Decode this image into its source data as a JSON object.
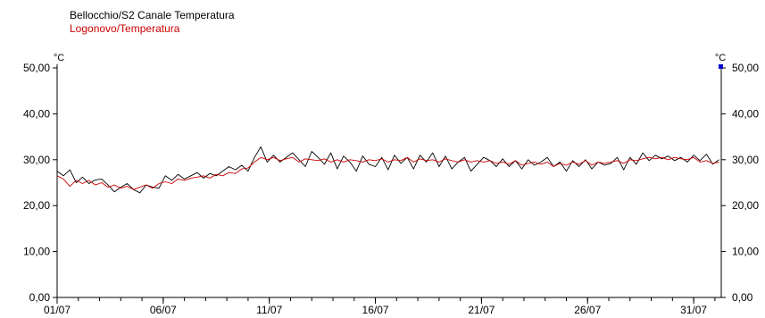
{
  "chart_data": {
    "type": "line",
    "title": "",
    "xlabel": "",
    "ylabel_left": "°C",
    "ylabel_right": "°C",
    "ylim": [
      0,
      50
    ],
    "y_ticks": [
      "0,00",
      "10,00",
      "20,00",
      "30,00",
      "40,00",
      "50,00"
    ],
    "x_ticks": [
      "01/07",
      "06/07",
      "11/07",
      "16/07",
      "21/07",
      "26/07",
      "31/07"
    ],
    "x_tick_days": [
      1,
      6,
      11,
      16,
      21,
      26,
      31
    ],
    "xlim_days": [
      1,
      32.3
    ],
    "grid": false,
    "legend_placement": "top-left",
    "series": [
      {
        "name": "Bellocchio/S2 Canale Temperatura",
        "color": "#000000",
        "x": [
          1.0,
          1.3,
          1.6,
          1.9,
          2.2,
          2.5,
          2.8,
          3.1,
          3.4,
          3.7,
          4.0,
          4.3,
          4.6,
          4.9,
          5.2,
          5.5,
          5.8,
          6.1,
          6.4,
          6.7,
          7.0,
          7.3,
          7.6,
          7.9,
          8.2,
          8.5,
          8.8,
          9.1,
          9.4,
          9.7,
          10.0,
          10.3,
          10.6,
          10.9,
          11.2,
          11.5,
          11.8,
          12.1,
          12.4,
          12.7,
          13.0,
          13.3,
          13.6,
          13.9,
          14.2,
          14.5,
          14.8,
          15.1,
          15.4,
          15.7,
          16.0,
          16.3,
          16.6,
          16.9,
          17.2,
          17.5,
          17.8,
          18.1,
          18.4,
          18.7,
          19.0,
          19.3,
          19.6,
          19.9,
          20.2,
          20.5,
          20.8,
          21.1,
          21.4,
          21.7,
          22.0,
          22.3,
          22.6,
          22.9,
          23.2,
          23.5,
          23.8,
          24.1,
          24.4,
          24.7,
          25.0,
          25.3,
          25.6,
          25.9,
          26.2,
          26.5,
          26.8,
          27.1,
          27.4,
          27.7,
          28.0,
          28.3,
          28.6,
          28.9,
          29.2,
          29.5,
          29.8,
          30.1,
          30.4,
          30.7,
          31.0,
          31.3,
          31.6,
          31.9,
          32.2
        ],
        "values": [
          27.5,
          26.5,
          27.8,
          25.0,
          26.2,
          24.8,
          25.6,
          25.8,
          24.5,
          23.0,
          24.0,
          24.8,
          23.5,
          22.8,
          24.5,
          24.0,
          23.8,
          26.5,
          25.5,
          26.8,
          25.8,
          26.5,
          27.2,
          26.0,
          27.0,
          26.5,
          27.5,
          28.5,
          27.8,
          28.8,
          27.5,
          30.5,
          32.8,
          29.5,
          31.0,
          29.5,
          30.5,
          31.5,
          30.0,
          28.5,
          31.8,
          30.5,
          29.0,
          31.5,
          28.0,
          30.8,
          29.5,
          27.5,
          30.8,
          29.0,
          28.5,
          30.5,
          27.8,
          31.0,
          29.2,
          30.5,
          28.0,
          31.0,
          29.5,
          31.5,
          28.5,
          30.8,
          28.0,
          29.5,
          30.5,
          27.5,
          29.0,
          30.5,
          29.8,
          28.5,
          30.2,
          28.5,
          29.8,
          28.0,
          30.0,
          28.8,
          29.5,
          30.5,
          28.5,
          29.5,
          27.5,
          29.8,
          28.5,
          30.0,
          28.0,
          29.5,
          28.8,
          29.2,
          30.5,
          27.8,
          30.5,
          29.0,
          31.5,
          29.8,
          31.0,
          30.2,
          30.8,
          29.8,
          30.5,
          29.5,
          31.0,
          29.8,
          31.2,
          29.0,
          30.0
        ]
      },
      {
        "name": "Logonovo/Temperatura",
        "color": "#cc0000",
        "x": [
          1.0,
          1.3,
          1.6,
          1.9,
          2.2,
          2.5,
          2.8,
          3.1,
          3.4,
          3.7,
          4.0,
          4.3,
          4.6,
          4.9,
          5.2,
          5.5,
          5.8,
          6.1,
          6.4,
          6.7,
          7.0,
          7.3,
          7.6,
          7.9,
          8.2,
          8.5,
          8.8,
          9.1,
          9.4,
          9.7,
          10.0,
          10.3,
          10.6,
          10.9,
          11.2,
          11.5,
          11.8,
          12.1,
          12.4,
          12.7,
          13.0,
          13.3,
          13.6,
          13.9,
          14.2,
          14.5,
          14.8,
          15.1,
          15.4,
          15.7,
          16.0,
          16.3,
          16.6,
          16.9,
          17.2,
          17.5,
          17.8,
          18.1,
          18.4,
          18.7,
          19.0,
          19.3,
          19.6,
          19.9,
          20.2,
          20.5,
          20.8,
          21.1,
          21.4,
          21.7,
          22.0,
          22.3,
          22.6,
          22.9,
          23.2,
          23.5,
          23.8,
          24.1,
          24.4,
          24.7,
          25.0,
          25.3,
          25.6,
          25.9,
          26.2,
          26.5,
          26.8,
          27.1,
          27.4,
          27.7,
          28.0,
          28.3,
          28.6,
          28.9,
          29.2,
          29.5,
          29.8,
          30.1,
          30.4,
          30.7,
          31.0,
          31.3,
          31.6,
          31.9,
          32.2
        ],
        "values": [
          26.5,
          25.8,
          24.2,
          25.5,
          24.8,
          25.5,
          24.5,
          25.0,
          24.0,
          24.5,
          23.8,
          24.2,
          23.5,
          24.0,
          24.5,
          23.8,
          24.8,
          25.2,
          24.8,
          25.8,
          25.5,
          26.0,
          26.2,
          26.5,
          26.0,
          26.8,
          26.5,
          27.2,
          27.0,
          28.0,
          28.2,
          29.5,
          30.5,
          30.0,
          30.5,
          29.8,
          30.2,
          30.5,
          29.5,
          30.2,
          30.0,
          29.8,
          30.2,
          29.5,
          30.0,
          29.5,
          30.0,
          29.8,
          29.5,
          30.0,
          29.8,
          30.2,
          29.5,
          30.0,
          29.8,
          30.5,
          29.5,
          30.2,
          29.8,
          30.0,
          29.5,
          30.2,
          29.8,
          29.5,
          30.0,
          29.5,
          29.8,
          29.5,
          29.8,
          29.2,
          29.5,
          29.0,
          29.8,
          28.8,
          29.2,
          29.5,
          29.0,
          29.5,
          28.5,
          29.2,
          28.8,
          29.5,
          29.0,
          29.8,
          28.8,
          29.5,
          29.2,
          29.5,
          29.8,
          29.2,
          30.0,
          29.8,
          30.2,
          30.5,
          30.2,
          30.5,
          30.0,
          30.5,
          30.2,
          30.0,
          30.5,
          29.5,
          29.8,
          29.2,
          29.5
        ]
      }
    ]
  }
}
